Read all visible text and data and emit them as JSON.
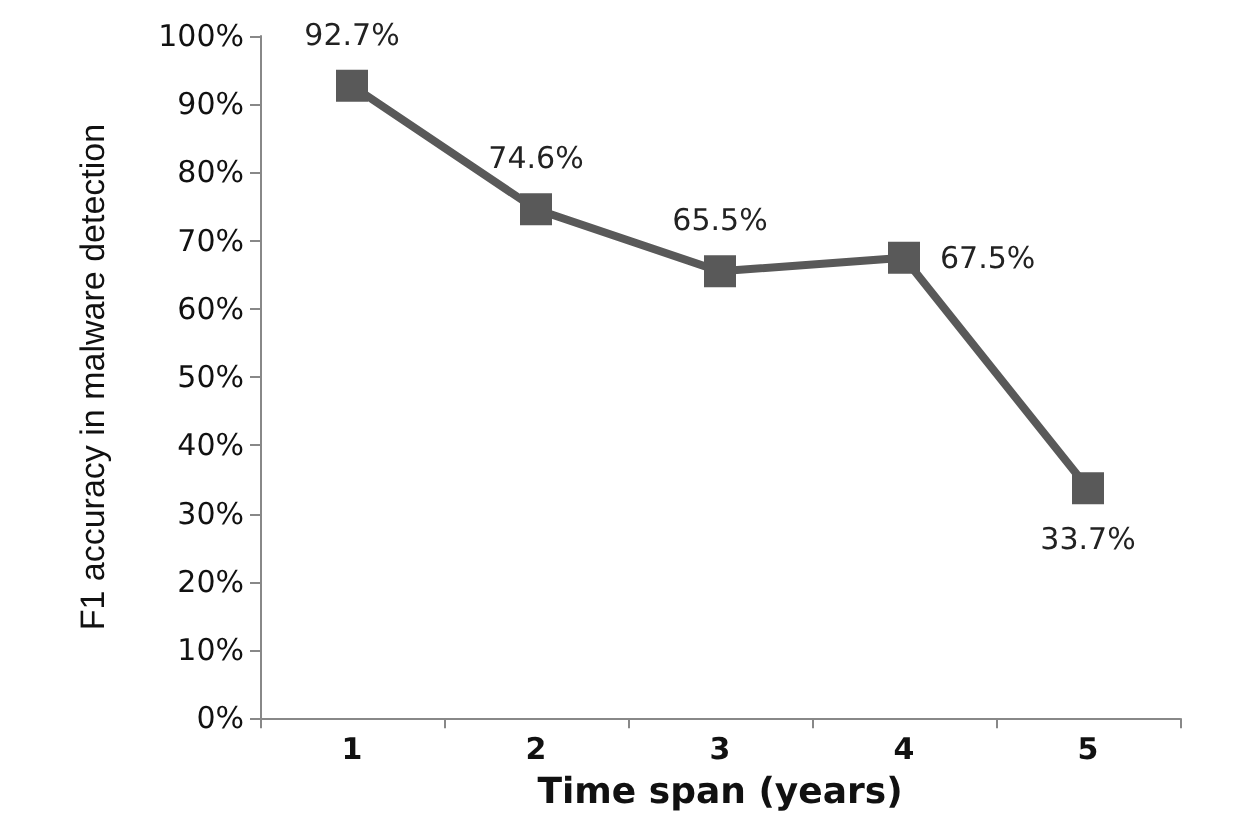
{
  "chart_data": {
    "type": "line",
    "xlabel": "Time span (years)",
    "ylabel": "F1 accuracy in malware detection",
    "categories": [
      "1",
      "2",
      "3",
      "4",
      "5"
    ],
    "series": [
      {
        "color": "#595959",
        "values": [
          92.7,
          74.6,
          65.5,
          67.5,
          33.7
        ],
        "value_labels": [
          "92.7%",
          "74.6%",
          "65.5%",
          "67.5%",
          "33.7%"
        ]
      }
    ],
    "ylim": [
      0,
      100
    ],
    "yticks": [
      {
        "value": 0,
        "label": "0%"
      },
      {
        "value": 10,
        "label": "10%"
      },
      {
        "value": 20,
        "label": "20%"
      },
      {
        "value": 30,
        "label": "30%"
      },
      {
        "value": 40,
        "label": "40%"
      },
      {
        "value": 50,
        "label": "50%"
      },
      {
        "value": 60,
        "label": "60%"
      },
      {
        "value": 70,
        "label": "70%"
      },
      {
        "value": 80,
        "label": "80%"
      },
      {
        "value": 90,
        "label": "90%"
      },
      {
        "value": 100,
        "label": "100%"
      }
    ],
    "grid": false,
    "marker": "square",
    "line_style": "solid"
  }
}
